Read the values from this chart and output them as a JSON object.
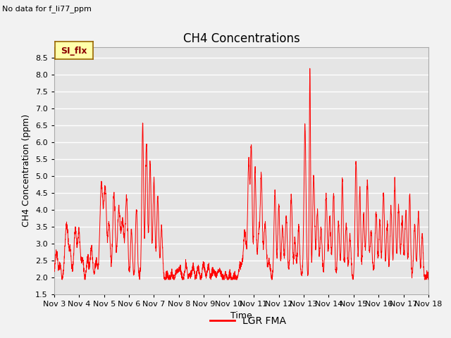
{
  "title": "CH4 Concentrations",
  "xlabel": "Time",
  "ylabel": "CH4 Concentration (ppm)",
  "top_left_text": "No data for f_li77_ppm",
  "tab_label": "SI_flx",
  "legend_label": "LGR FMA",
  "line_color": "#ff0000",
  "ylim": [
    1.5,
    8.8
  ],
  "yticks": [
    1.5,
    2.0,
    2.5,
    3.0,
    3.5,
    4.0,
    4.5,
    5.0,
    5.5,
    6.0,
    6.5,
    7.0,
    7.5,
    8.0,
    8.5
  ],
  "xtick_labels": [
    "Nov 3",
    "Nov 4",
    "Nov 5",
    "Nov 6",
    "Nov 7",
    "Nov 8",
    "Nov 9",
    "Nov 10",
    "Nov 11",
    "Nov 12",
    "Nov 13",
    "Nov 14",
    "Nov 15",
    "Nov 16",
    "Nov 17",
    "Nov 18"
  ],
  "bg_color": "#e5e5e5",
  "grid_color": "#ffffff",
  "fig_bg": "#f2f2f2",
  "title_fontsize": 12,
  "label_fontsize": 9,
  "tick_fontsize": 8
}
